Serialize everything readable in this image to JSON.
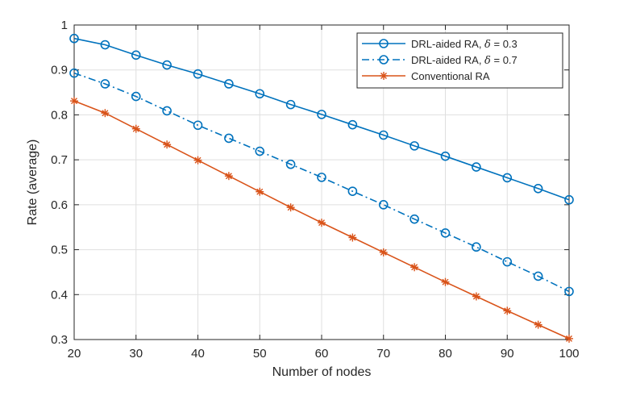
{
  "chart_data": {
    "type": "line",
    "title": "",
    "xlabel": "Number of nodes",
    "ylabel": "Rate (average)",
    "xlim": [
      20,
      100
    ],
    "ylim": [
      0.3,
      1
    ],
    "grid": true,
    "legend_position": "top-right",
    "x": [
      20,
      25,
      30,
      35,
      40,
      45,
      50,
      55,
      60,
      65,
      70,
      75,
      80,
      85,
      90,
      95,
      100
    ],
    "x_ticks": [
      20,
      30,
      40,
      50,
      60,
      70,
      80,
      90,
      100
    ],
    "y_ticks": [
      0.3,
      0.4,
      0.5,
      0.6,
      0.7,
      0.8,
      0.9,
      1
    ],
    "x_tick_labels": [
      "20",
      "30",
      "40",
      "50",
      "60",
      "70",
      "80",
      "90",
      "100"
    ],
    "y_tick_labels": [
      "0.3",
      "0.4",
      "0.5",
      "0.6",
      "0.7",
      "0.8",
      "0.9",
      "1"
    ],
    "series": [
      {
        "name": "DRL-aided RA, δ = 0.3",
        "legend_prefix": "DRL-aided RA, ",
        "legend_symbol": "δ",
        "legend_suffix": " = 0.3",
        "color": "#0072BD",
        "line_style": "solid",
        "marker": "circle",
        "values": [
          0.97,
          0.956,
          0.933,
          0.911,
          0.891,
          0.869,
          0.847,
          0.823,
          0.801,
          0.778,
          0.755,
          0.731,
          0.708,
          0.684,
          0.66,
          0.636,
          0.611
        ]
      },
      {
        "name": "DRL-aided RA, δ = 0.7",
        "legend_prefix": "DRL-aided RA, ",
        "legend_symbol": "δ",
        "legend_suffix": " = 0.7",
        "color": "#0072BD",
        "line_style": "dashdot",
        "marker": "circle",
        "values": [
          0.893,
          0.869,
          0.841,
          0.809,
          0.777,
          0.748,
          0.719,
          0.69,
          0.661,
          0.63,
          0.6,
          0.568,
          0.537,
          0.506,
          0.473,
          0.441,
          0.407
        ]
      },
      {
        "name": "Conventional RA",
        "legend_prefix": "Conventional RA",
        "legend_symbol": "",
        "legend_suffix": "",
        "color": "#D95319",
        "line_style": "solid",
        "marker": "asterisk",
        "values": [
          0.831,
          0.804,
          0.769,
          0.734,
          0.699,
          0.664,
          0.629,
          0.594,
          0.56,
          0.527,
          0.494,
          0.461,
          0.428,
          0.396,
          0.364,
          0.333,
          0.302
        ]
      }
    ]
  }
}
